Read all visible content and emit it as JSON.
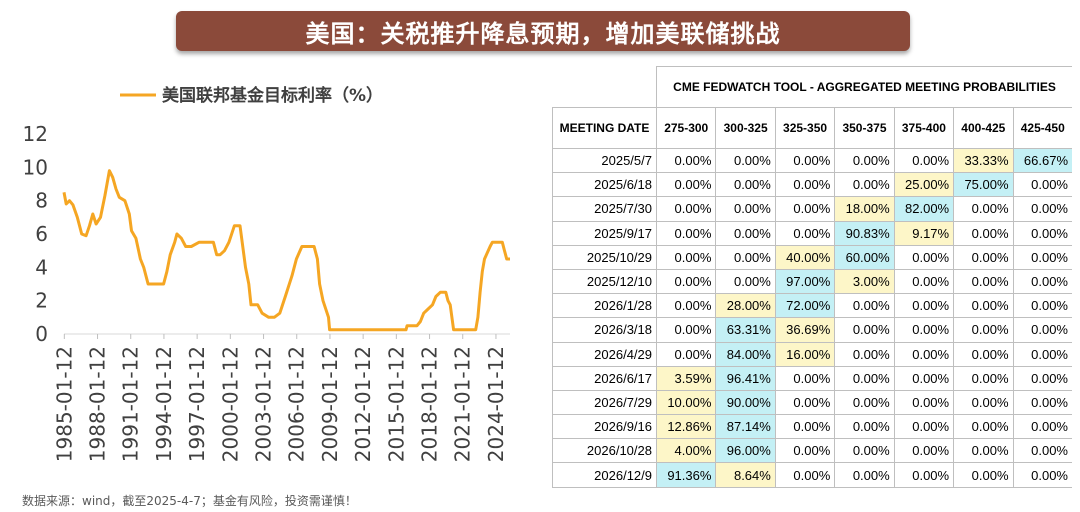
{
  "banner": {
    "title": "美国：关税推升降息预期，增加美联储挑战"
  },
  "footer": {
    "note": "数据来源：wind，截至2025-4-7；基金有风险，投资需谨慎！"
  },
  "chart_data": {
    "type": "line",
    "title": "",
    "series": [
      {
        "name": "美国联邦基金目标利率（%）",
        "color": "#f5a623"
      }
    ],
    "legend": "top",
    "x_ticks": [
      "1985-01-12",
      "1988-01-12",
      "1991-01-12",
      "1994-01-12",
      "1997-01-12",
      "2000-01-12",
      "2003-01-12",
      "2006-01-12",
      "2009-01-12",
      "2012-01-12",
      "2015-01-12",
      "2018-01-12",
      "2021-01-12",
      "2024-01-12"
    ],
    "y_ticks": [
      "0",
      "2",
      "4",
      "6",
      "8",
      "10",
      "12"
    ],
    "ylim": [
      0,
      12
    ],
    "xlim": [
      1985.0,
      2025.3
    ],
    "grid": false,
    "points": [
      [
        1985.0,
        8.5
      ],
      [
        1985.2,
        7.8
      ],
      [
        1985.5,
        8.0
      ],
      [
        1985.8,
        7.75
      ],
      [
        1986.2,
        7.0
      ],
      [
        1986.6,
        6.0
      ],
      [
        1987.0,
        5.9
      ],
      [
        1987.3,
        6.5
      ],
      [
        1987.6,
        7.2
      ],
      [
        1987.9,
        6.6
      ],
      [
        1988.3,
        7.0
      ],
      [
        1988.7,
        8.3
      ],
      [
        1989.1,
        9.8
      ],
      [
        1989.4,
        9.4
      ],
      [
        1989.7,
        8.7
      ],
      [
        1990.0,
        8.2
      ],
      [
        1990.5,
        8.0
      ],
      [
        1990.9,
        7.2
      ],
      [
        1991.1,
        6.2
      ],
      [
        1991.5,
        5.75
      ],
      [
        1991.9,
        4.5
      ],
      [
        1992.2,
        4.0
      ],
      [
        1992.6,
        3.0
      ],
      [
        1993.0,
        3.0
      ],
      [
        1993.5,
        3.0
      ],
      [
        1994.0,
        3.0
      ],
      [
        1994.3,
        3.75
      ],
      [
        1994.6,
        4.75
      ],
      [
        1995.0,
        5.5
      ],
      [
        1995.2,
        6.0
      ],
      [
        1995.6,
        5.75
      ],
      [
        1996.0,
        5.25
      ],
      [
        1996.5,
        5.25
      ],
      [
        1997.2,
        5.5
      ],
      [
        1997.6,
        5.5
      ],
      [
        1998.5,
        5.5
      ],
      [
        1998.8,
        4.75
      ],
      [
        1999.1,
        4.75
      ],
      [
        1999.5,
        5.0
      ],
      [
        1999.9,
        5.5
      ],
      [
        2000.4,
        6.5
      ],
      [
        2000.9,
        6.5
      ],
      [
        2001.1,
        5.5
      ],
      [
        2001.4,
        4.0
      ],
      [
        2001.7,
        3.0
      ],
      [
        2001.9,
        1.75
      ],
      [
        2002.5,
        1.75
      ],
      [
        2002.9,
        1.25
      ],
      [
        2003.5,
        1.0
      ],
      [
        2004.0,
        1.0
      ],
      [
        2004.5,
        1.25
      ],
      [
        2005.0,
        2.25
      ],
      [
        2005.6,
        3.5
      ],
      [
        2006.0,
        4.5
      ],
      [
        2006.5,
        5.25
      ],
      [
        2007.6,
        5.25
      ],
      [
        2007.9,
        4.5
      ],
      [
        2008.1,
        3.0
      ],
      [
        2008.4,
        2.0
      ],
      [
        2008.9,
        1.0
      ],
      [
        2009.0,
        0.25
      ],
      [
        2015.9,
        0.25
      ],
      [
        2016.0,
        0.5
      ],
      [
        2016.9,
        0.5
      ],
      [
        2017.2,
        0.75
      ],
      [
        2017.5,
        1.25
      ],
      [
        2017.9,
        1.5
      ],
      [
        2018.3,
        1.75
      ],
      [
        2018.6,
        2.25
      ],
      [
        2019.0,
        2.5
      ],
      [
        2019.5,
        2.5
      ],
      [
        2019.7,
        2.0
      ],
      [
        2019.9,
        1.75
      ],
      [
        2020.2,
        0.25
      ],
      [
        2022.2,
        0.25
      ],
      [
        2022.4,
        1.0
      ],
      [
        2022.6,
        2.5
      ],
      [
        2022.8,
        3.75
      ],
      [
        2023.0,
        4.5
      ],
      [
        2023.5,
        5.25
      ],
      [
        2023.7,
        5.5
      ],
      [
        2024.6,
        5.5
      ],
      [
        2024.8,
        5.0
      ],
      [
        2024.9,
        4.75
      ],
      [
        2025.0,
        4.5
      ],
      [
        2025.3,
        4.5
      ]
    ]
  },
  "table": {
    "super_header": "CME FEDWATCH TOOL - AGGREGATED MEETING PROBABILITIES",
    "date_header": "MEETING DATE",
    "columns": [
      "275-300",
      "300-325",
      "325-350",
      "350-375",
      "375-400",
      "400-425",
      "425-450"
    ],
    "rows": [
      {
        "date": "2025/5/7",
        "values": [
          "0.00%",
          "0.00%",
          "0.00%",
          "0.00%",
          "0.00%",
          "33.33%",
          "66.67%"
        ],
        "hl": [
          null,
          null,
          null,
          null,
          null,
          "y",
          "b"
        ]
      },
      {
        "date": "2025/6/18",
        "values": [
          "0.00%",
          "0.00%",
          "0.00%",
          "0.00%",
          "25.00%",
          "75.00%",
          "0.00%"
        ],
        "hl": [
          null,
          null,
          null,
          null,
          "y",
          "b",
          null
        ]
      },
      {
        "date": "2025/7/30",
        "values": [
          "0.00%",
          "0.00%",
          "0.00%",
          "18.00%",
          "82.00%",
          "0.00%",
          "0.00%"
        ],
        "hl": [
          null,
          null,
          null,
          "y",
          "b",
          null,
          null
        ]
      },
      {
        "date": "2025/9/17",
        "values": [
          "0.00%",
          "0.00%",
          "0.00%",
          "90.83%",
          "9.17%",
          "0.00%",
          "0.00%"
        ],
        "hl": [
          null,
          null,
          null,
          "b",
          "y",
          null,
          null
        ]
      },
      {
        "date": "2025/10/29",
        "values": [
          "0.00%",
          "0.00%",
          "40.00%",
          "60.00%",
          "0.00%",
          "0.00%",
          "0.00%"
        ],
        "hl": [
          null,
          null,
          "y",
          "b",
          null,
          null,
          null
        ]
      },
      {
        "date": "2025/12/10",
        "values": [
          "0.00%",
          "0.00%",
          "97.00%",
          "3.00%",
          "0.00%",
          "0.00%",
          "0.00%"
        ],
        "hl": [
          null,
          null,
          "b",
          "y",
          null,
          null,
          null
        ]
      },
      {
        "date": "2026/1/28",
        "values": [
          "0.00%",
          "28.00%",
          "72.00%",
          "0.00%",
          "0.00%",
          "0.00%",
          "0.00%"
        ],
        "hl": [
          null,
          "y",
          "b",
          null,
          null,
          null,
          null
        ]
      },
      {
        "date": "2026/3/18",
        "values": [
          "0.00%",
          "63.31%",
          "36.69%",
          "0.00%",
          "0.00%",
          "0.00%",
          "0.00%"
        ],
        "hl": [
          null,
          "b",
          "y",
          null,
          null,
          null,
          null
        ]
      },
      {
        "date": "2026/4/29",
        "values": [
          "0.00%",
          "84.00%",
          "16.00%",
          "0.00%",
          "0.00%",
          "0.00%",
          "0.00%"
        ],
        "hl": [
          null,
          "b",
          "y",
          null,
          null,
          null,
          null
        ]
      },
      {
        "date": "2026/6/17",
        "values": [
          "3.59%",
          "96.41%",
          "0.00%",
          "0.00%",
          "0.00%",
          "0.00%",
          "0.00%"
        ],
        "hl": [
          "y",
          "b",
          null,
          null,
          null,
          null,
          null
        ]
      },
      {
        "date": "2026/7/29",
        "values": [
          "10.00%",
          "90.00%",
          "0.00%",
          "0.00%",
          "0.00%",
          "0.00%",
          "0.00%"
        ],
        "hl": [
          "y",
          "b",
          null,
          null,
          null,
          null,
          null
        ]
      },
      {
        "date": "2026/9/16",
        "values": [
          "12.86%",
          "87.14%",
          "0.00%",
          "0.00%",
          "0.00%",
          "0.00%",
          "0.00%"
        ],
        "hl": [
          "y",
          "b",
          null,
          null,
          null,
          null,
          null
        ]
      },
      {
        "date": "2026/10/28",
        "values": [
          "4.00%",
          "96.00%",
          "0.00%",
          "0.00%",
          "0.00%",
          "0.00%",
          "0.00%"
        ],
        "hl": [
          "y",
          "b",
          null,
          null,
          null,
          null,
          null
        ]
      },
      {
        "date": "2026/12/9",
        "values": [
          "91.36%",
          "8.64%",
          "0.00%",
          "0.00%",
          "0.00%",
          "0.00%",
          "0.00%"
        ],
        "hl": [
          "b",
          "y",
          null,
          null,
          null,
          null,
          null
        ]
      }
    ]
  }
}
